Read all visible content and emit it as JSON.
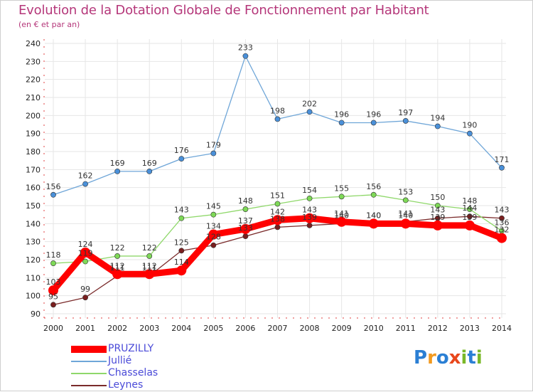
{
  "header": {
    "title": "Evolution de la Dotation Globale de Fonctionnement par Habitant",
    "subtitle": "(en € et par an)"
  },
  "logo": {
    "text": "Proxiti",
    "letters": [
      "P",
      "r",
      "o",
      "x",
      "i",
      "t",
      "i"
    ],
    "colors": [
      "#2b7fd4",
      "#f29a1f",
      "#2b7fd4",
      "#e8471c",
      "#7ab829",
      "#2b7fd4",
      "#7ab829"
    ]
  },
  "chart_data": {
    "type": "line",
    "title": "Evolution de la Dotation Globale de Fonctionnement par Habitant",
    "subtitle": "(en € et par an)",
    "xlabel": "",
    "ylabel": "",
    "ylim": [
      90,
      240
    ],
    "yticks": [
      90,
      100,
      110,
      120,
      130,
      140,
      150,
      160,
      170,
      180,
      190,
      200,
      210,
      220,
      230,
      240
    ],
    "categories": [
      "2000",
      "2001",
      "2002",
      "2003",
      "2004",
      "2005",
      "2006",
      "2007",
      "2008",
      "2009",
      "2010",
      "2011",
      "2012",
      "2013",
      "2014"
    ],
    "legend_position": "bottom-left",
    "series": [
      {
        "name": "Leynes",
        "color": "#7a1f1f",
        "line_color": "#7a2a2a",
        "values": [
          95,
          99,
          111,
          111,
          125,
          128,
          133,
          138,
          139,
          140,
          140,
          141,
          143,
          144,
          143
        ]
      },
      {
        "name": "Chasselas",
        "color": "#7ed957",
        "line_color": "#8fd86a",
        "values": [
          118,
          119,
          122,
          122,
          143,
          145,
          148,
          151,
          154,
          155,
          156,
          153,
          150,
          148,
          136
        ]
      },
      {
        "name": "Jullié",
        "color": "#4a90d9",
        "line_color": "#6fa6d8",
        "values": [
          156,
          162,
          169,
          169,
          176,
          179,
          233,
          198,
          202,
          196,
          196,
          197,
          194,
          190,
          171
        ]
      },
      {
        "name": "PRUZILLY",
        "color": "#ff0000",
        "line_color": "#ff0000",
        "values": [
          103,
          124,
          112,
          112,
          114,
          134,
          137,
          142,
          143,
          141,
          140,
          140,
          139,
          139,
          132
        ]
      }
    ],
    "legend_order": [
      "PRUZILLY",
      "Jullié",
      "Chasselas",
      "Leynes"
    ]
  }
}
